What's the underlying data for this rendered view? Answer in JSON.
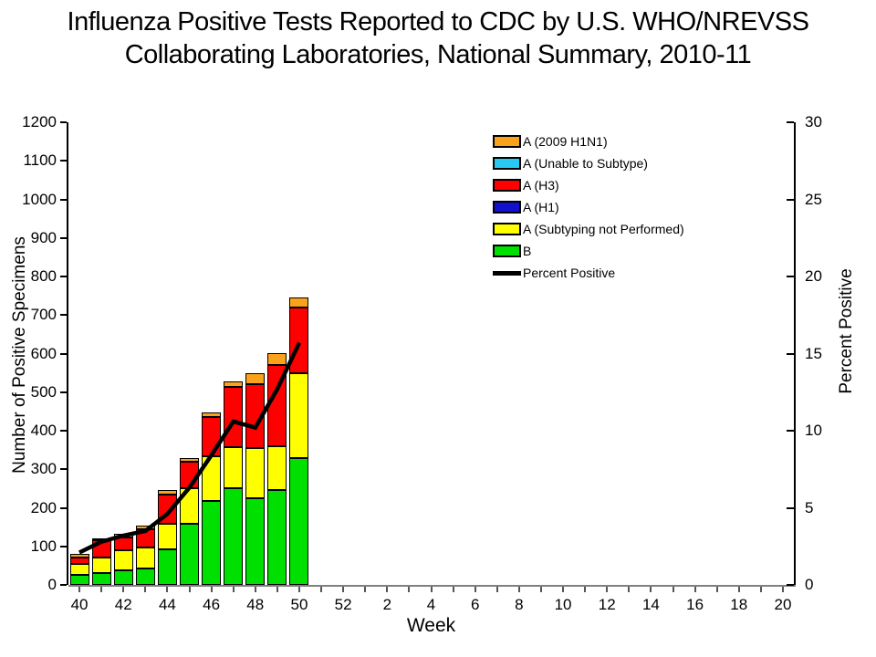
{
  "title": {
    "line1": "Influenza Positive Tests Reported to CDC by U.S. WHO/NREVSS",
    "line2": "Collaborating Laboratories, National Summary, 2010-11"
  },
  "chart_data": {
    "type": "bar",
    "subtype": "stacked-bars-with-line-overlay",
    "title": "Influenza Positive Tests Reported to CDC by U.S. WHO/NREVSS Collaborating Laboratories, National Summary, 2010-11",
    "xlabel": "Week",
    "ylabel_left": "Number of Positive Specimens",
    "ylabel_right": "Percent Positive",
    "ylim_left": [
      0,
      1200
    ],
    "ytick_labels_left": [
      0,
      100,
      200,
      300,
      400,
      500,
      600,
      700,
      800,
      900,
      1000,
      1100,
      1200
    ],
    "ylim_right": [
      0,
      30
    ],
    "ytick_labels_right": [
      0,
      5,
      10,
      15,
      20,
      25,
      30
    ],
    "week_ticks": [
      40,
      41,
      42,
      43,
      44,
      45,
      46,
      47,
      48,
      49,
      50,
      51,
      52,
      1,
      2,
      3,
      4,
      5,
      6,
      7,
      8,
      9,
      10,
      11,
      12,
      13,
      14,
      15,
      16,
      17,
      18,
      19,
      20
    ],
    "xtick_labels": [
      40,
      42,
      44,
      46,
      48,
      50,
      52,
      2,
      4,
      6,
      8,
      10,
      12,
      14,
      16,
      18,
      20
    ],
    "grid": "off",
    "legend_position": "upper-right-inside",
    "bar_weeks": [
      40,
      41,
      42,
      43,
      44,
      45,
      46,
      47,
      48,
      49,
      50
    ],
    "series": [
      {
        "name": "B",
        "color": "#00E000",
        "values": [
          25,
          30,
          37,
          43,
          92,
          158,
          217,
          251,
          225,
          245,
          330
        ]
      },
      {
        "name": "A (Subtyping not Performed)",
        "color": "#FFFF00",
        "values": [
          30,
          41,
          54,
          54,
          67,
          93,
          117,
          106,
          130,
          115,
          220
        ]
      },
      {
        "name": "A (H1)",
        "color": "#1111CE",
        "values": [
          0,
          0,
          0,
          0,
          0,
          0,
          0,
          0,
          0,
          0,
          0
        ]
      },
      {
        "name": "A (H3)",
        "color": "#FE0000",
        "values": [
          17,
          45,
          31,
          47,
          76,
          69,
          101,
          157,
          165,
          210,
          169
        ]
      },
      {
        "name": "A (Unable to Subtype)",
        "color": "#29C8F2",
        "values": [
          0,
          0,
          0,
          0,
          0,
          0,
          0,
          0,
          0,
          0,
          0
        ]
      },
      {
        "name": "A (2009 H1N1)",
        "color": "#FAA21B",
        "values": [
          8,
          5,
          11,
          10,
          10,
          8,
          12,
          13,
          30,
          32,
          26
        ]
      }
    ],
    "bar_totals": [
      80,
      121,
      133,
      154,
      245,
      328,
      447,
      527,
      550,
      602,
      745
    ],
    "line_series": {
      "name": "Percent Positive",
      "color": "#000000",
      "values": [
        2.1,
        2.8,
        3.2,
        3.5,
        4.6,
        6.3,
        8.4,
        10.6,
        10.2,
        12.7,
        15.7
      ]
    },
    "legend": [
      {
        "label": "A (2009 H1N1)",
        "swatch": "box",
        "color": "#FAA21B"
      },
      {
        "label": "A (Unable to Subtype)",
        "swatch": "box",
        "color": "#29C8F2"
      },
      {
        "label": "A (H3)",
        "swatch": "box",
        "color": "#FE0000"
      },
      {
        "label": "A (H1)",
        "swatch": "box",
        "color": "#1111CE"
      },
      {
        "label": "A (Subtyping not Performed)",
        "swatch": "box",
        "color": "#FFFF00"
      },
      {
        "label": "B",
        "swatch": "box",
        "color": "#00E000"
      },
      {
        "label": "Percent Positive",
        "swatch": "line",
        "color": "#000000"
      }
    ]
  }
}
